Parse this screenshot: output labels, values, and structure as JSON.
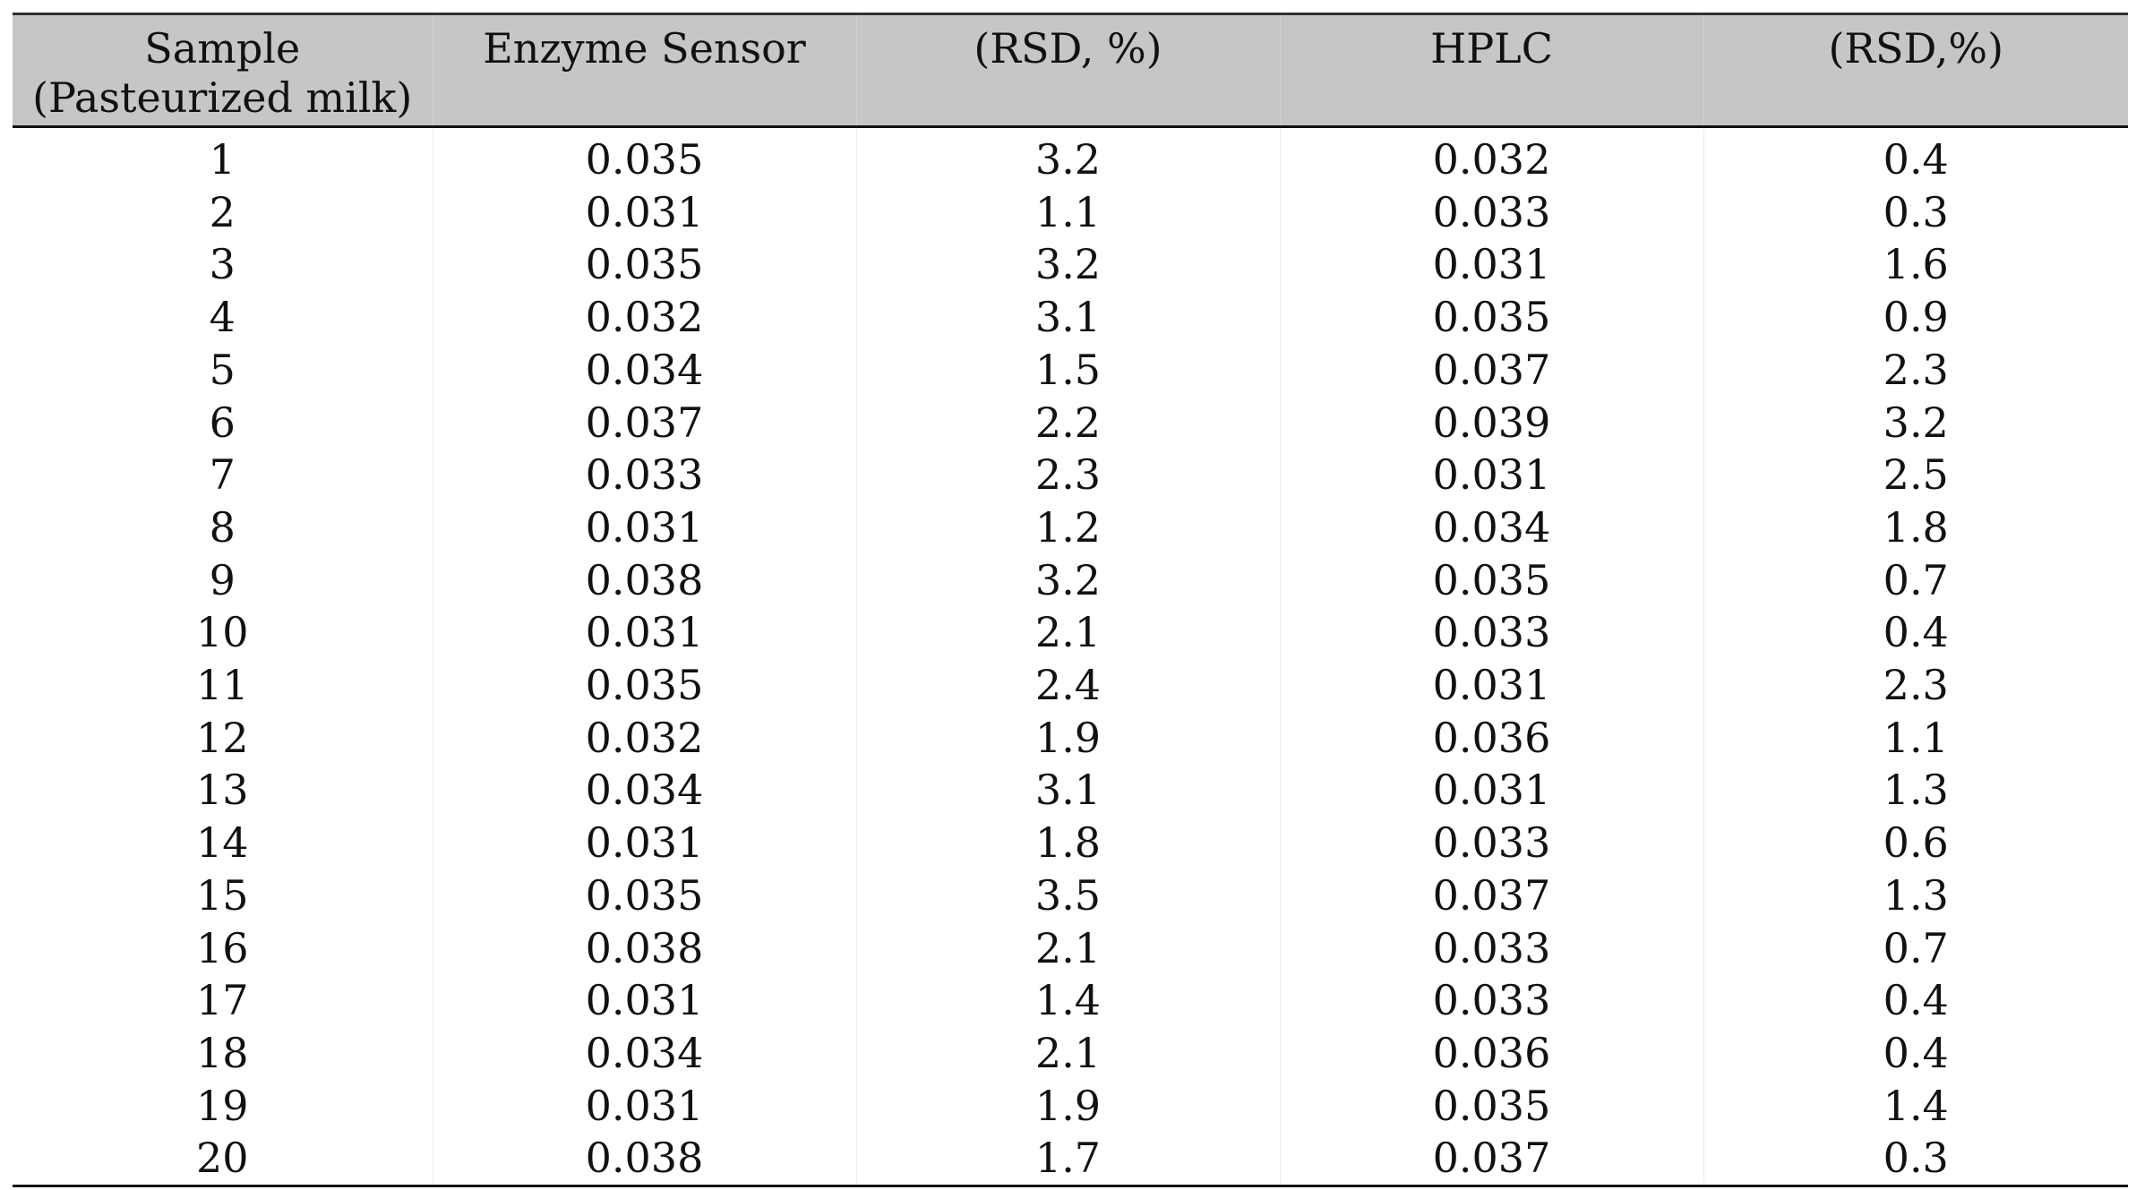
{
  "table": {
    "headers": [
      {
        "line1": "Sample",
        "line2": "(Pasteurized milk)"
      },
      {
        "line1": "Enzyme Sensor",
        "line2": ""
      },
      {
        "line1": "(RSD, %)",
        "line2": ""
      },
      {
        "line1": "HPLC",
        "line2": ""
      },
      {
        "line1": "(RSD,%)",
        "line2": ""
      }
    ],
    "rows": [
      [
        "1",
        "0.035",
        "3.2",
        "0.032",
        "0.4"
      ],
      [
        "2",
        "0.031",
        "1.1",
        "0.033",
        "0.3"
      ],
      [
        "3",
        "0.035",
        "3.2",
        "0.031",
        "1.6"
      ],
      [
        "4",
        "0.032",
        "3.1",
        "0.035",
        "0.9"
      ],
      [
        "5",
        "0.034",
        "1.5",
        "0.037",
        "2.3"
      ],
      [
        "6",
        "0.037",
        "2.2",
        "0.039",
        "3.2"
      ],
      [
        "7",
        "0.033",
        "2.3",
        "0.031",
        "2.5"
      ],
      [
        "8",
        "0.031",
        "1.2",
        "0.034",
        "1.8"
      ],
      [
        "9",
        "0.038",
        "3.2",
        "0.035",
        "0.7"
      ],
      [
        "10",
        "0.031",
        "2.1",
        "0.033",
        "0.4"
      ],
      [
        "11",
        "0.035",
        "2.4",
        "0.031",
        "2.3"
      ],
      [
        "12",
        "0.032",
        "1.9",
        "0.036",
        "1.1"
      ],
      [
        "13",
        "0.034",
        "3.1",
        "0.031",
        "1.3"
      ],
      [
        "14",
        "0.031",
        "1.8",
        "0.033",
        "0.6"
      ],
      [
        "15",
        "0.035",
        "3.5",
        "0.037",
        "1.3"
      ],
      [
        "16",
        "0.038",
        "2.1",
        "0.033",
        "0.7"
      ],
      [
        "17",
        "0.031",
        "1.4",
        "0.033",
        "0.4"
      ],
      [
        "18",
        "0.034",
        "2.1",
        "0.036",
        "0.4"
      ],
      [
        "19",
        "0.031",
        "1.9",
        "0.035",
        "1.4"
      ],
      [
        "20",
        "0.038",
        "1.7",
        "0.037",
        "0.3"
      ]
    ]
  },
  "colors": {
    "header_background": "#c6c6c6",
    "rule": "#111111",
    "text": "#111111"
  }
}
